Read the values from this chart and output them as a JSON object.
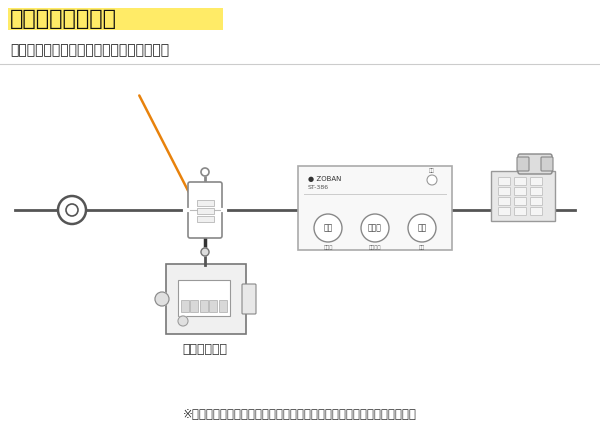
{
  "title": "ガス検知器の場合",
  "subtitle": "ガス検針中継器と電話の間に取り付ける。",
  "footer": "※　設置後ガス検針器が正常作動しているかをガス会社に確認してもらう",
  "gas_meter_label": "ガスメーター",
  "title_bg_color": "#FFE84C",
  "title_fontsize": 16,
  "bg_color": "#FFFFFF",
  "line_color": "#555555",
  "arrow_color": "#E8820C",
  "btn1": "聞く",
  "btn2": "もどる",
  "btn3": "消す",
  "sub1": "止める",
  "sub2": "初を聞く",
  "sub3": "消す",
  "device_brand": "● ZOBAN",
  "device_model": "ST-386",
  "led_label": "電源"
}
